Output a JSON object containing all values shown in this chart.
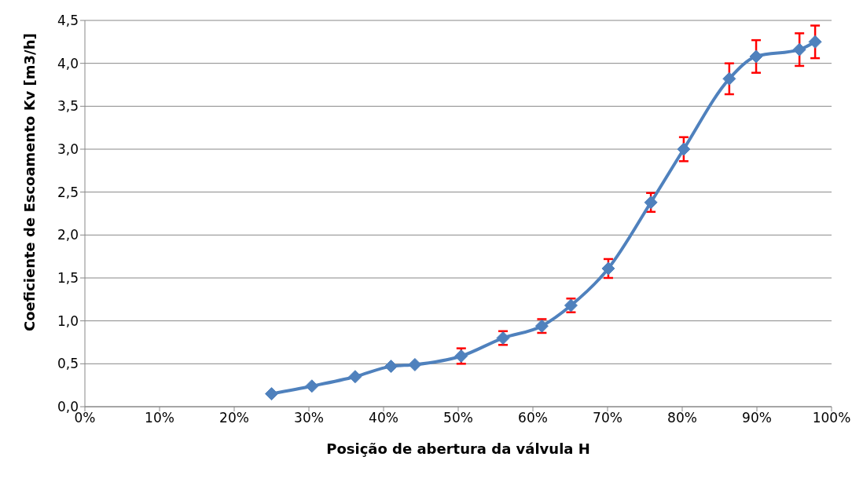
{
  "chart_data": {
    "type": "line",
    "xlabel": "Posição de abertura da válvula H",
    "ylabel": "Coeficiente de Escoamento Kv [m3/h]",
    "x": [
      25,
      30.4,
      36.2,
      41,
      44.2,
      50.4,
      56,
      61.2,
      65.1,
      70.1,
      75.8,
      80.2,
      86.3,
      89.9,
      95.7,
      97.8
    ],
    "series": [
      {
        "color": "#4f81bd",
        "values": [
          0.15,
          0.24,
          0.35,
          0.47,
          0.49,
          0.59,
          0.8,
          0.94,
          1.18,
          1.61,
          2.38,
          3.0,
          3.82,
          4.08,
          4.16,
          4.25
        ],
        "errors": [
          null,
          null,
          null,
          null,
          null,
          0.09,
          0.08,
          0.08,
          0.08,
          0.11,
          0.11,
          0.14,
          0.18,
          0.19,
          0.19,
          0.19
        ]
      }
    ],
    "xlim": [
      0,
      100
    ],
    "xticks": [
      {
        "value": 0,
        "label": "0%"
      },
      {
        "value": 10,
        "label": "10%"
      },
      {
        "value": 20,
        "label": "20%"
      },
      {
        "value": 30,
        "label": "30%"
      },
      {
        "value": 40,
        "label": "40%"
      },
      {
        "value": 50,
        "label": "50%"
      },
      {
        "value": 60,
        "label": "60%"
      },
      {
        "value": 70,
        "label": "70%"
      },
      {
        "value": 80,
        "label": "80%"
      },
      {
        "value": 90,
        "label": "90%"
      },
      {
        "value": 100,
        "label": "100%"
      }
    ],
    "ylim": [
      0,
      4.5
    ],
    "yticks": [
      {
        "value": 0,
        "label": "0,0"
      },
      {
        "value": 0.5,
        "label": "0,5"
      },
      {
        "value": 1,
        "label": "1,0"
      },
      {
        "value": 1.5,
        "label": "1,5"
      },
      {
        "value": 2,
        "label": "2,0"
      },
      {
        "value": 2.5,
        "label": "2,5"
      },
      {
        "value": 3,
        "label": "3,0"
      },
      {
        "value": 3.5,
        "label": "3,5"
      },
      {
        "value": 4,
        "label": "4,0"
      },
      {
        "value": 4.5,
        "label": "4,5"
      }
    ],
    "grid": "y",
    "legend": false,
    "marker": "diamond",
    "line_style": "solid"
  }
}
